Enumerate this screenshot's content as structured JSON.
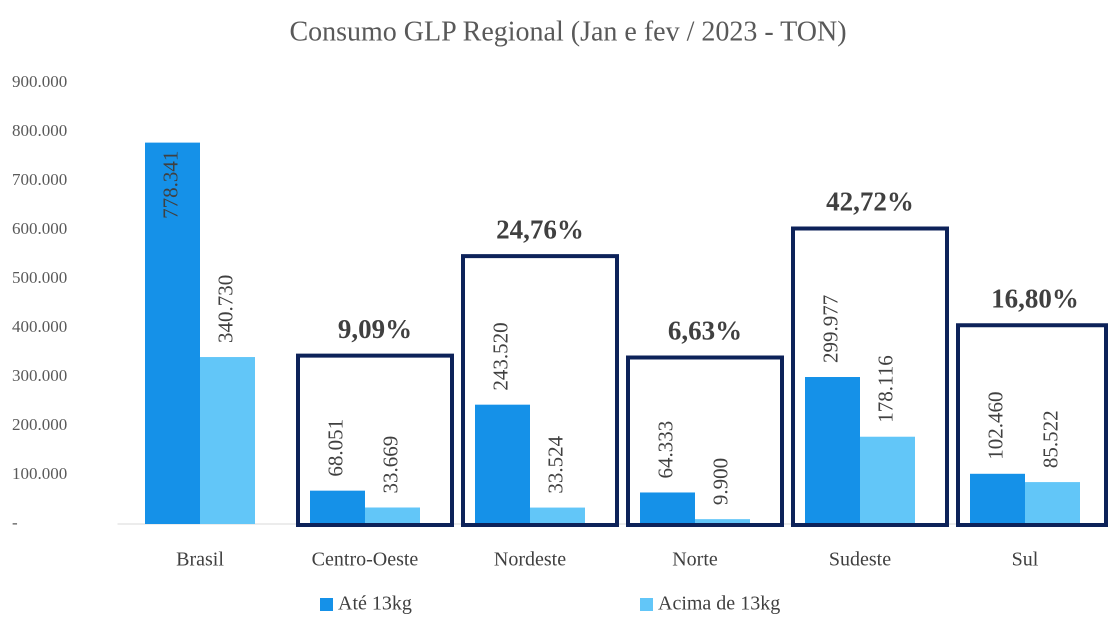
{
  "chart_data": {
    "type": "bar",
    "title": "Consumo GLP Regional (Jan e fev / 2023 - TON)",
    "categories": [
      "Brasil",
      "Centro-Oeste",
      "Nordeste",
      "Norte",
      "Sudeste",
      "Sul"
    ],
    "series": [
      {
        "name": "Até 13kg",
        "color": "#1591e8",
        "values": [
          778341,
          68051,
          243520,
          64333,
          299977,
          102460
        ],
        "value_labels": [
          "778.341",
          "68.051",
          "243.520",
          "64.333",
          "299.977",
          "102.460"
        ]
      },
      {
        "name": "Acima de 13kg",
        "color": "#62c6f8",
        "values": [
          340730,
          33669,
          33524,
          9900,
          178116,
          85522
        ],
        "value_labels": [
          "340.730",
          "33.669",
          "33.524",
          "9.900",
          "178.116",
          "85.522"
        ]
      }
    ],
    "ylim": [
      0,
      900000
    ],
    "yticks": [
      {
        "value": 0,
        "label": "-"
      },
      {
        "value": 100000,
        "label": "100.000"
      },
      {
        "value": 200000,
        "label": "200.000"
      },
      {
        "value": 300000,
        "label": "300.000"
      },
      {
        "value": 400000,
        "label": "400.000"
      },
      {
        "value": 500000,
        "label": "500.000"
      },
      {
        "value": 600000,
        "label": "600.000"
      },
      {
        "value": 700000,
        "label": "700.000"
      },
      {
        "value": 800000,
        "label": "800.000"
      },
      {
        "value": 900000,
        "label": "900.000"
      }
    ],
    "annotations": [
      {
        "category": "Centro-Oeste",
        "text": "9,09%"
      },
      {
        "category": "Nordeste",
        "text": "24,76%"
      },
      {
        "category": "Norte",
        "text": "6,63%"
      },
      {
        "category": "Sudeste",
        "text": "42,72%"
      },
      {
        "category": "Sul",
        "text": "16,80%"
      }
    ],
    "legend": "bottom"
  }
}
